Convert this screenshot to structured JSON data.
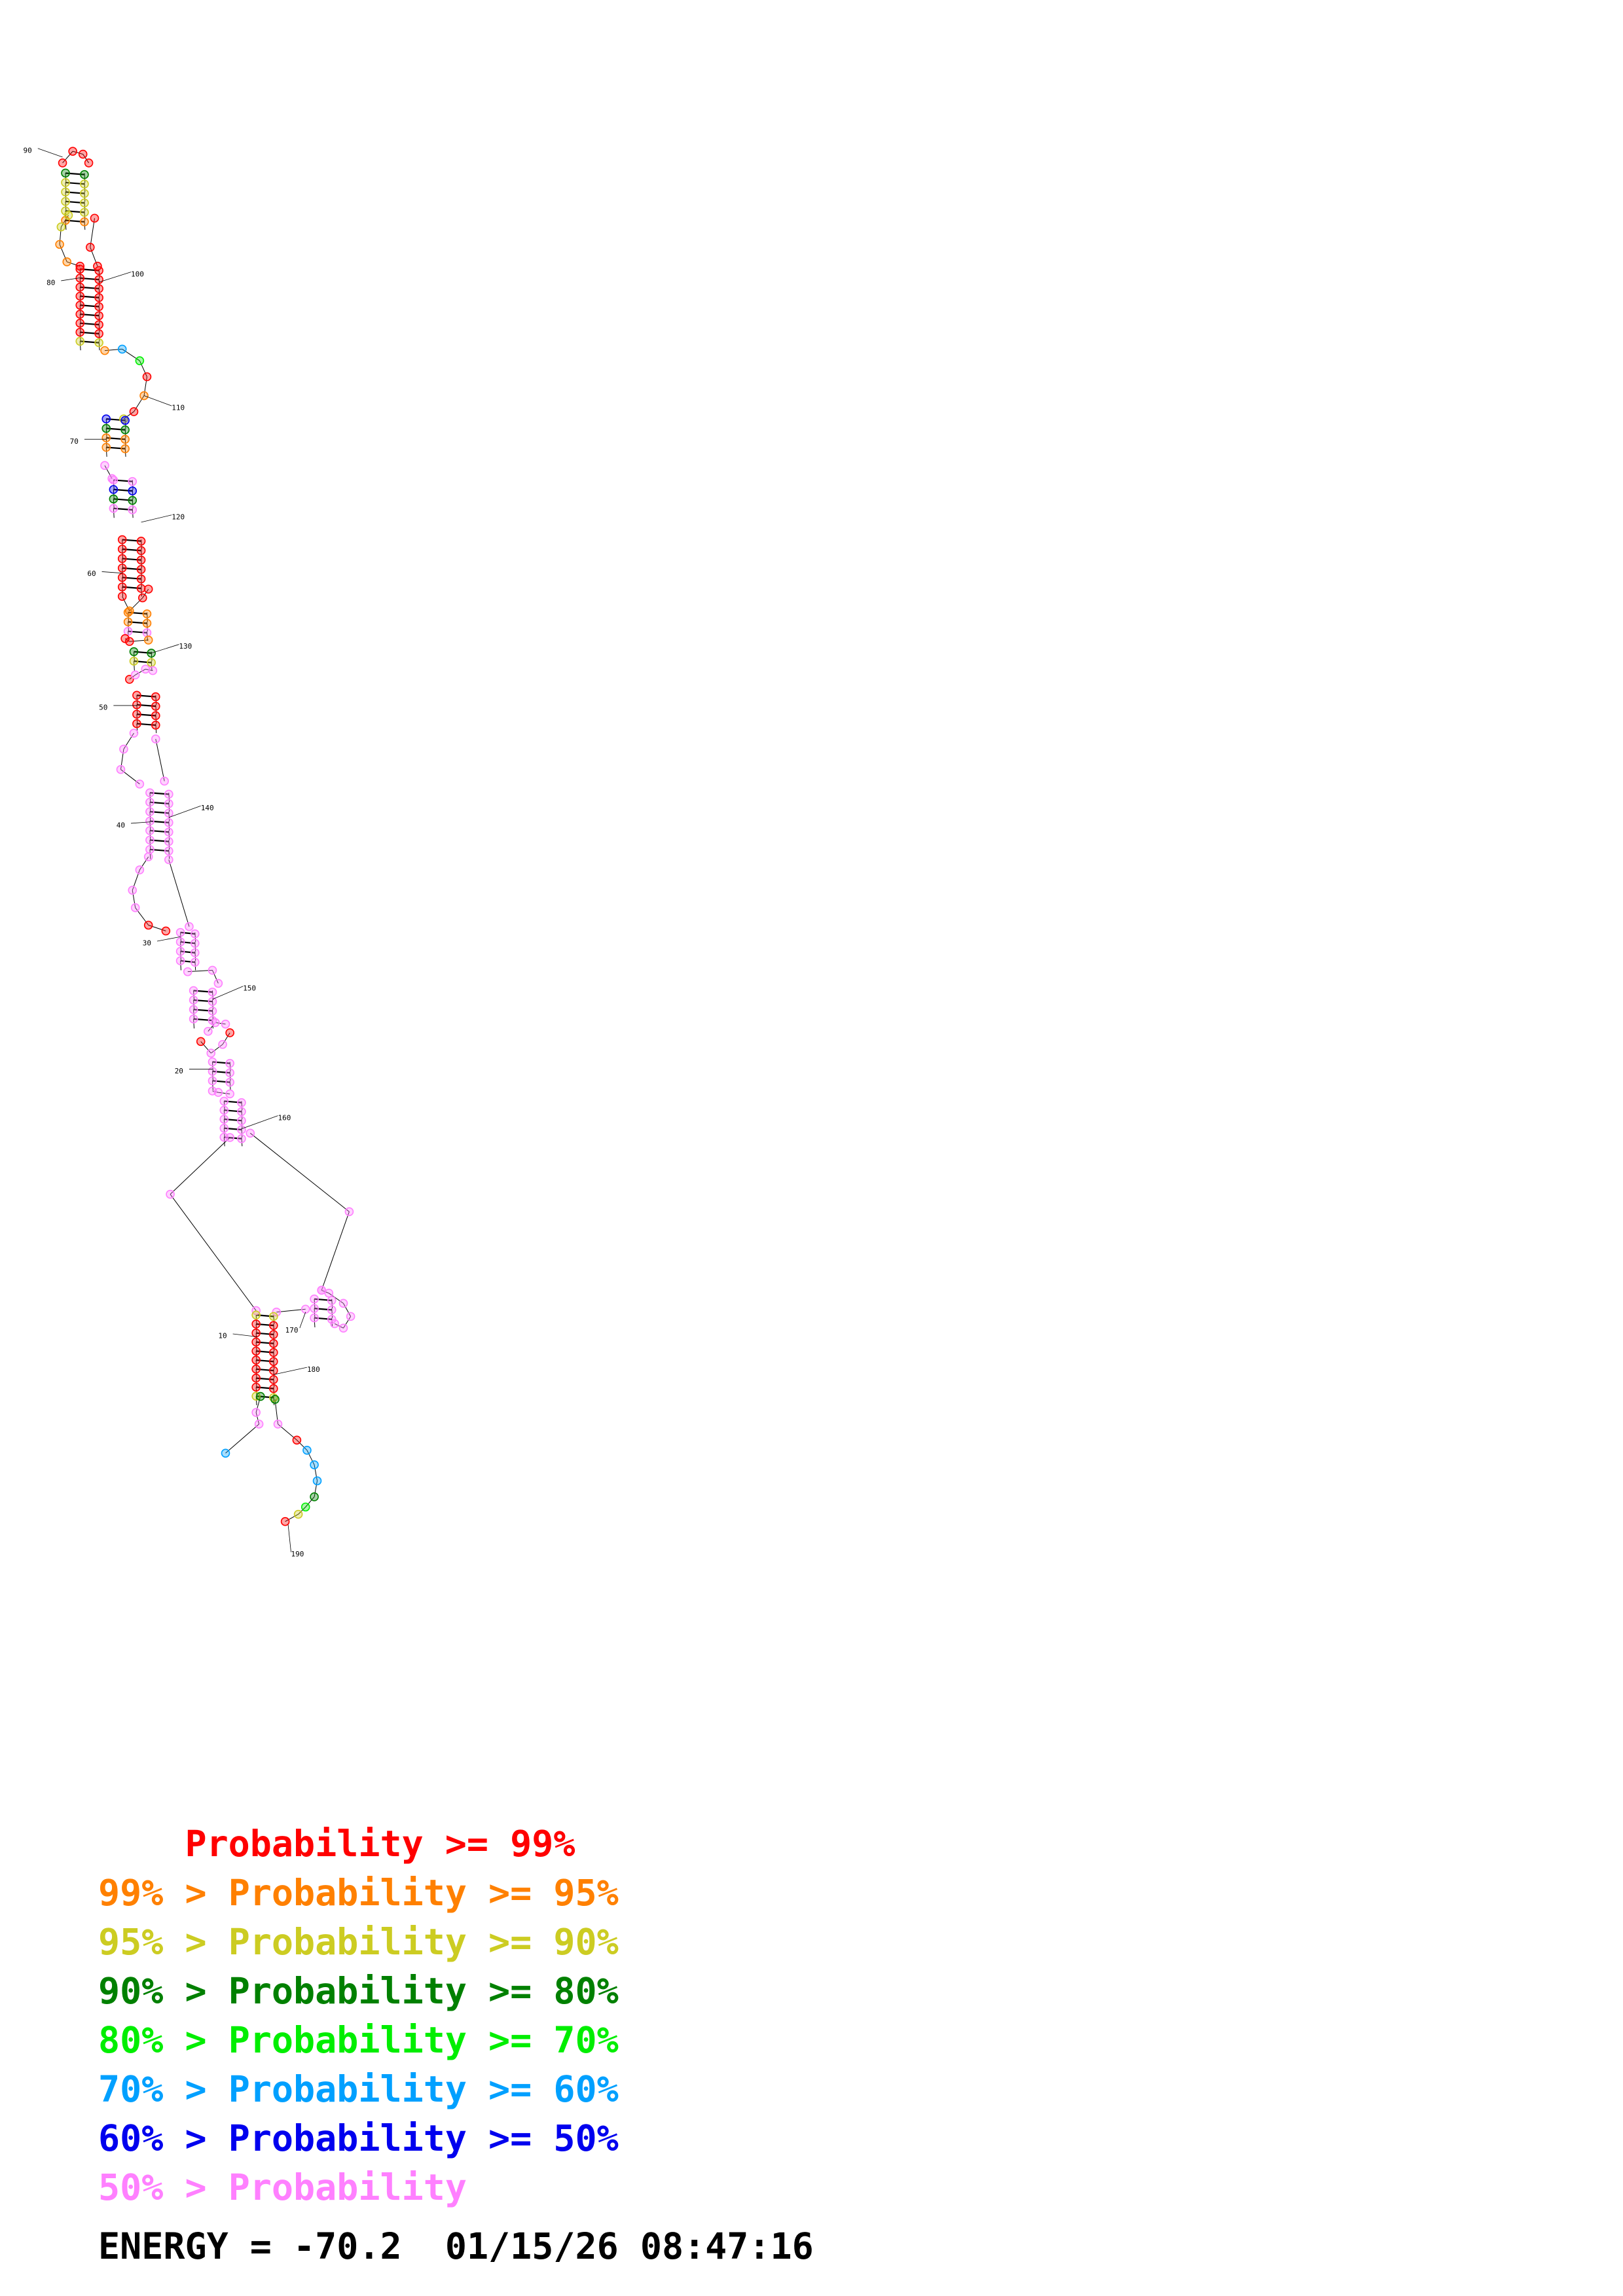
{
  "colors": {
    "p99": "#ff0000",
    "p95": "#ff8000",
    "p90": "#cccc22",
    "p80": "#008000",
    "p70": "#00ee00",
    "p60": "#00a0ff",
    "p50": "#0000ee",
    "plow": "#ff80ff"
  },
  "structure": {
    "position_labels": [
      "10",
      "20",
      "30",
      "40",
      "50",
      "60",
      "70",
      "80",
      "90",
      "100",
      "110",
      "120",
      "130",
      "140",
      "150",
      "160",
      "170",
      "180",
      "190"
    ]
  },
  "legend": [
    {
      "prefix": "    ",
      "text": "Probability >= 99%",
      "color_key": "p99"
    },
    {
      "prefix": "99% > ",
      "text": "Probability >= 95%",
      "color_key": "p95"
    },
    {
      "prefix": "95% > ",
      "text": "Probability >= 90%",
      "color_key": "p90"
    },
    {
      "prefix": "90% > ",
      "text": "Probability >= 80%",
      "color_key": "p80"
    },
    {
      "prefix": "80% > ",
      "text": "Probability >= 70%",
      "color_key": "p70"
    },
    {
      "prefix": "70% > ",
      "text": "Probability >= 60%",
      "color_key": "p60"
    },
    {
      "prefix": "60% > ",
      "text": "Probability >= 50%",
      "color_key": "p50"
    },
    {
      "prefix": "50% > ",
      "text": "Probability",
      "color_key": "plow"
    }
  ],
  "energy": {
    "label": "ENERGY = ",
    "value": "-70.2",
    "timestamp": "01/15/26 08:47:16"
  }
}
